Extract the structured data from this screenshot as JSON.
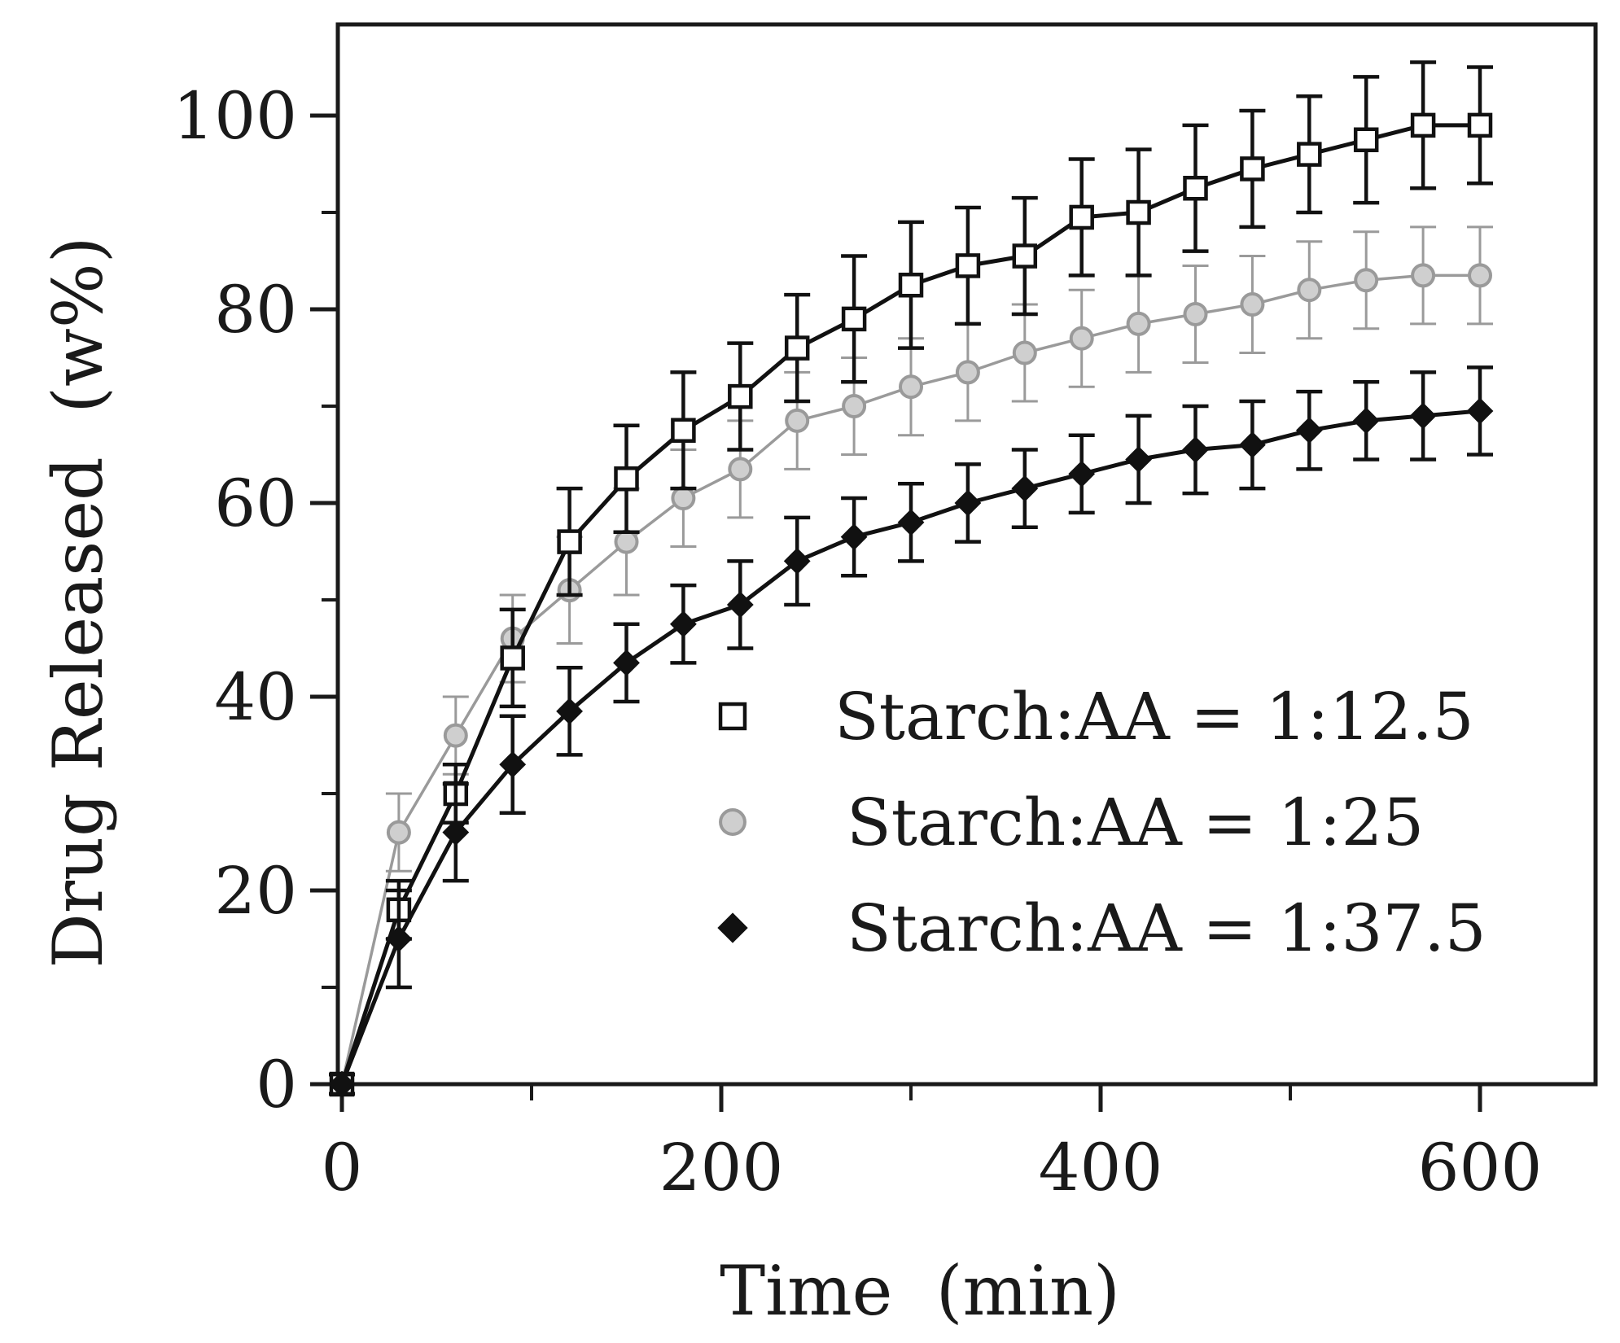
{
  "chart_data": {
    "type": "line",
    "title": "",
    "xlabel": "Time  (min)",
    "ylabel": "Drug Released  (w%)",
    "xlim": [
      0,
      660
    ],
    "ylim": [
      0,
      110
    ],
    "xticks": [
      0,
      200,
      400,
      600
    ],
    "yticks": [
      0,
      20,
      40,
      60,
      80,
      100
    ],
    "x_minor_ticks": [
      100,
      300,
      500
    ],
    "y_minor_ticks": [
      10,
      30,
      50,
      70,
      90
    ],
    "grid": false,
    "legend_position": "lower-right",
    "x": [
      0,
      30,
      60,
      90,
      120,
      150,
      180,
      210,
      240,
      270,
      300,
      330,
      360,
      390,
      420,
      450,
      480,
      510,
      540,
      570,
      600
    ],
    "series": [
      {
        "name": "Starch:AA = 1:12.5",
        "marker": "open-square",
        "color": "#111111",
        "values": [
          0,
          18,
          30,
          44,
          56,
          62.5,
          67.5,
          71,
          76,
          79,
          82.5,
          84.5,
          85.5,
          89.5,
          90,
          92.5,
          94.5,
          96,
          97.5,
          99,
          99
        ],
        "errors": [
          1,
          3,
          3,
          5,
          5.5,
          5.5,
          6,
          5.5,
          5.5,
          6.5,
          6.5,
          6,
          6,
          6,
          6.5,
          6.5,
          6,
          6,
          6.5,
          6.5,
          6
        ]
      },
      {
        "name": "Starch:AA = 1:25",
        "marker": "gray-circle",
        "color": "#9a9a9a",
        "values": [
          0,
          26,
          36,
          46,
          51,
          56,
          60.5,
          63.5,
          68.5,
          70,
          72,
          73.5,
          75.5,
          77,
          78.5,
          79.5,
          80.5,
          82,
          83,
          83.5,
          83.5
        ],
        "errors": [
          1,
          4,
          4,
          4.5,
          5.5,
          5.5,
          5,
          5,
          5,
          5,
          5,
          5,
          5,
          5,
          5,
          5,
          5,
          5,
          5,
          5,
          5
        ]
      },
      {
        "name": "Starch:AA = 1:37.5",
        "marker": "filled-diamond",
        "color": "#111111",
        "values": [
          0,
          15,
          26,
          33,
          38.5,
          43.5,
          47.5,
          49.5,
          54,
          56.5,
          58,
          60,
          61.5,
          63,
          64.5,
          65.5,
          66,
          67.5,
          68.5,
          69,
          69.5
        ],
        "errors": [
          1,
          5,
          5,
          5,
          4.5,
          4,
          4,
          4.5,
          4.5,
          4,
          4,
          4,
          4,
          4,
          4.5,
          4.5,
          4.5,
          4,
          4,
          4.5,
          4.5
        ]
      }
    ]
  }
}
